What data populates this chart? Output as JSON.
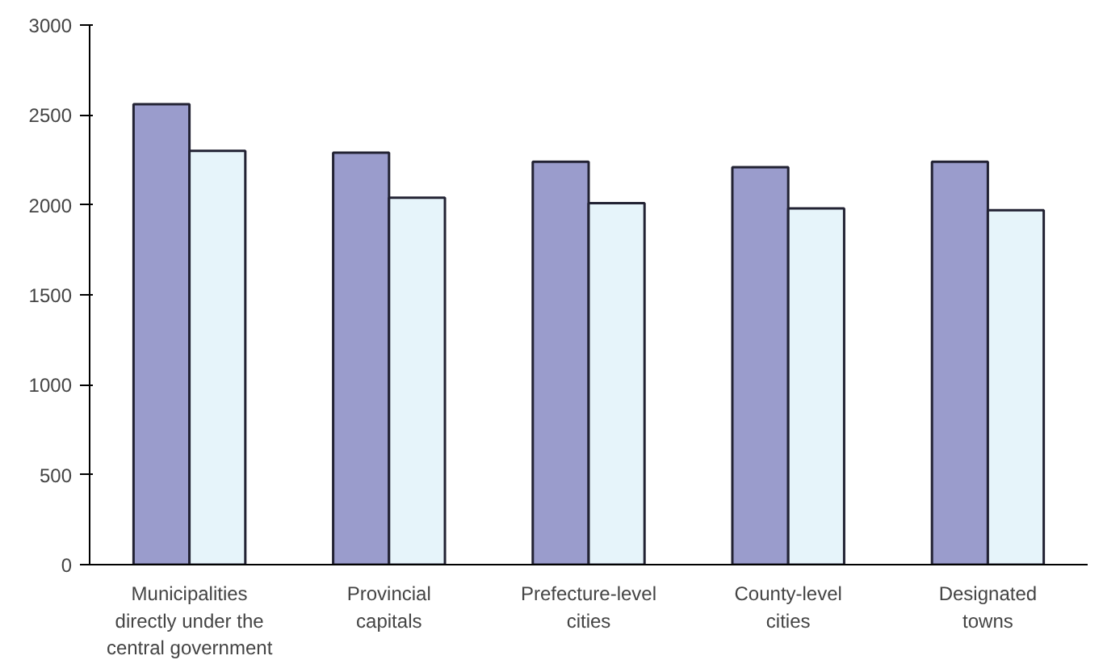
{
  "chart_data": {
    "type": "bar",
    "categories": [
      "Municipalities\ndirectly under the\ncentral government",
      "Provincial\ncapitals",
      "Prefecture-level\ncities",
      "County-level\ncities",
      "Designated\ntowns"
    ],
    "series": [
      {
        "color": "#9a9ccc",
        "values": [
          2560,
          2290,
          2240,
          2210,
          2240
        ]
      },
      {
        "color": "#e6f4fa",
        "values": [
          2300,
          2040,
          2010,
          1980,
          1970
        ]
      }
    ],
    "ylim": [
      0,
      3000
    ],
    "yticks": [
      0,
      500,
      1000,
      1500,
      2000,
      2500,
      3000
    ],
    "grid": false
  }
}
